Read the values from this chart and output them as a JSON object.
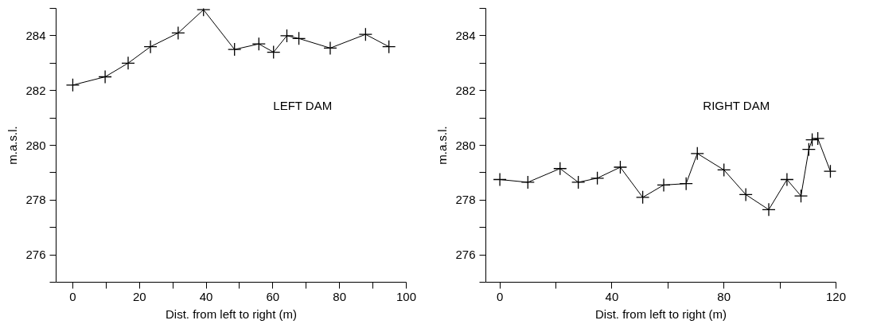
{
  "chart_data": [
    {
      "type": "line",
      "xlabel": "Dist. from left to right (m)",
      "ylabel": "m.a.s.l.",
      "annotations": [
        "LEFT DAM"
      ],
      "marker": "cross",
      "line_style": "solid",
      "grid": false,
      "xlim": [
        -5,
        100
      ],
      "ylim": [
        275,
        285
      ],
      "xticks": [
        0,
        {
          "value": 10,
          "label": null
        },
        20,
        {
          "value": 30,
          "label": null
        },
        40,
        {
          "value": 50,
          "label": null
        },
        60,
        {
          "value": 70,
          "label": null
        },
        80,
        {
          "value": 90,
          "label": null
        },
        100
      ],
      "yticks": [
        {
          "value": 275,
          "label": null
        },
        276,
        {
          "value": 277,
          "label": null
        },
        278,
        {
          "value": 279,
          "label": null
        },
        280,
        {
          "value": 281,
          "label": null
        },
        282,
        {
          "value": 283,
          "label": null
        },
        284,
        {
          "value": 285,
          "label": null
        }
      ],
      "series": [
        {
          "color": "#000000",
          "x": [
            0,
            9.7,
            16.6,
            23.3,
            31.6,
            39.2,
            48.5,
            55.8,
            60.2,
            64.2,
            67.8,
            77.2,
            87.8,
            94.8
          ],
          "values": [
            282.2,
            282.5,
            283.0,
            283.6,
            284.1,
            284.95,
            283.5,
            283.7,
            283.4,
            284.0,
            283.9,
            283.55,
            284.05,
            283.6
          ]
        }
      ]
    },
    {
      "type": "line",
      "xlabel": "Dist. from left to right (m)",
      "ylabel": "m.a.s.l.",
      "annotations": [
        "RIGHT DAM"
      ],
      "marker": "cross",
      "line_style": "solid",
      "grid": false,
      "xlim": [
        -5,
        120
      ],
      "ylim": [
        275,
        285
      ],
      "xticks": [
        0,
        {
          "value": 20,
          "label": null
        },
        40,
        {
          "value": 60,
          "label": null
        },
        80,
        {
          "value": 100,
          "label": null
        },
        120
      ],
      "yticks": [
        {
          "value": 275,
          "label": null
        },
        276,
        {
          "value": 277,
          "label": null
        },
        278,
        {
          "value": 279,
          "label": null
        },
        280,
        {
          "value": 281,
          "label": null
        },
        282,
        {
          "value": 283,
          "label": null
        },
        284,
        {
          "value": 285,
          "label": null
        }
      ],
      "series": [
        {
          "color": "#000000",
          "x": [
            0,
            10,
            21.5,
            28,
            34.8,
            43,
            51,
            58.5,
            66.5,
            70.5,
            80,
            87.8,
            96,
            102.5,
            107.5,
            110.3,
            111.5,
            113.5,
            118
          ],
          "values": [
            278.75,
            278.65,
            279.15,
            278.65,
            278.8,
            279.2,
            278.1,
            278.55,
            278.6,
            279.7,
            279.1,
            278.2,
            277.65,
            278.75,
            278.15,
            279.85,
            280.2,
            280.25,
            279.05
          ]
        }
      ]
    }
  ]
}
